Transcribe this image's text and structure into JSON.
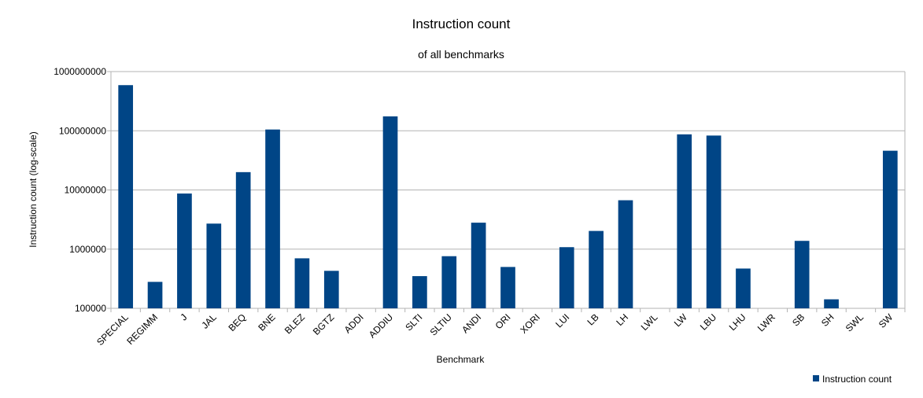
{
  "chart_data": {
    "type": "bar",
    "title": "Instruction count",
    "subtitle": "of all benchmarks",
    "xlabel": "Benchmark",
    "ylabel": "Instruction count (log-scale)",
    "yscale": "log",
    "ylim": [
      100000,
      1000000000
    ],
    "yticks": [
      100000,
      1000000,
      10000000,
      100000000,
      1000000000
    ],
    "ytick_labels": [
      "100000",
      "1000000",
      "10000000",
      "100000000",
      "1000000000"
    ],
    "grid": "horizontal",
    "legend_position": "bottom-right",
    "bar_color": "#004586",
    "categories": [
      "SPECIAL",
      "REGIMM",
      "J",
      "JAL",
      "BEQ",
      "BNE",
      "BLEZ",
      "BGTZ",
      "ADDI",
      "ADDIU",
      "SLTI",
      "SLTIU",
      "ANDI",
      "ORI",
      "XORI",
      "LUI",
      "LB",
      "LH",
      "LWL",
      "LW",
      "LBU",
      "LHU",
      "LWR",
      "SB",
      "SH",
      "SWL",
      "SW"
    ],
    "series": [
      {
        "name": "Instruction count",
        "values": [
          590000000,
          280000,
          8700000,
          2700000,
          20000000,
          105000000,
          700000,
          430000,
          null,
          175000000,
          350000,
          760000,
          2800000,
          500000,
          null,
          1080000,
          2030000,
          6700000,
          null,
          87000000,
          83000000,
          470000,
          null,
          1380000,
          142000,
          null,
          46000000
        ]
      }
    ]
  }
}
